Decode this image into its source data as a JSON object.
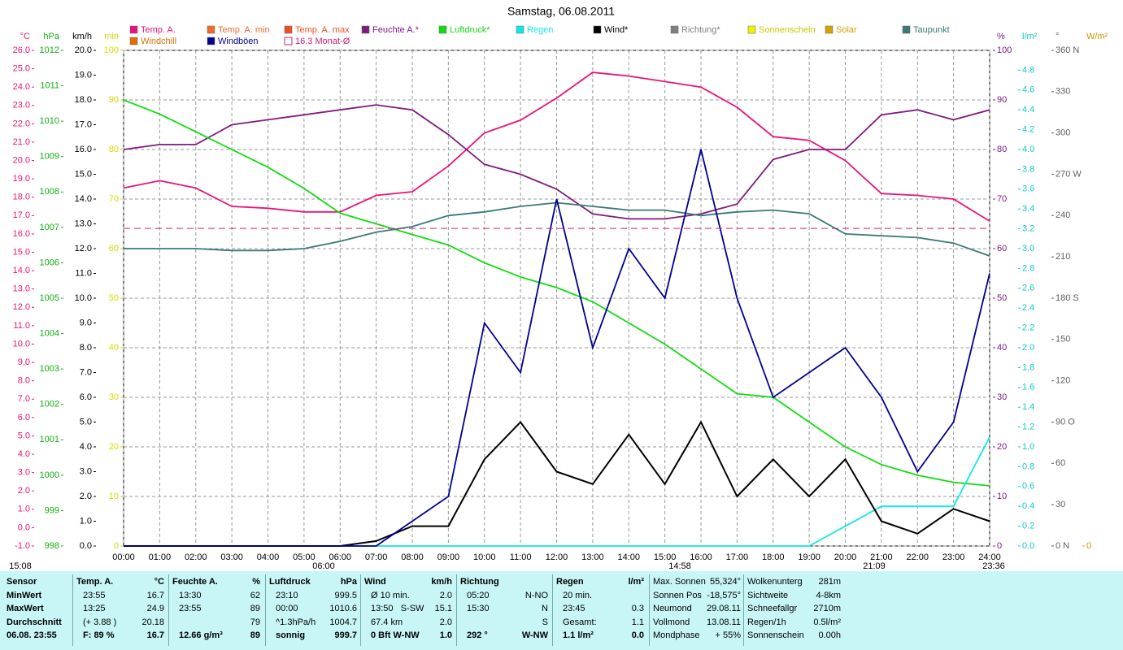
{
  "chart_data": {
    "type": "line",
    "title": "Samstag, 06.08.2011",
    "categories": [
      "00:00",
      "01:00",
      "02:00",
      "03:00",
      "04:00",
      "05:00",
      "06:00",
      "07:00",
      "08:00",
      "09:00",
      "10:00",
      "11:00",
      "12:00",
      "13:00",
      "14:00",
      "15:00",
      "16:00",
      "17:00",
      "18:00",
      "19:00",
      "20:00",
      "21:00",
      "22:00",
      "23:00",
      "24:00"
    ],
    "grid": true,
    "axes": [
      {
        "label": "°C",
        "side": "left",
        "color": "#e8137a",
        "ylim": [
          -1,
          26
        ],
        "yticks": [
          {
            "value": -1,
            "label": "-1.0"
          },
          {
            "value": 0,
            "label": "0.0"
          },
          {
            "value": 1,
            "label": "1.0"
          },
          {
            "value": 2,
            "label": "2.0"
          },
          {
            "value": 3,
            "label": "3.0"
          },
          {
            "value": 4,
            "label": "4.0"
          },
          {
            "value": 5,
            "label": "5.0"
          },
          {
            "value": 6,
            "label": "6.0"
          },
          {
            "value": 7,
            "label": "7.0"
          },
          {
            "value": 8,
            "label": "8.0"
          },
          {
            "value": 9,
            "label": "9.0"
          },
          {
            "value": 10,
            "label": "10.0"
          },
          {
            "value": 11,
            "label": "11.0"
          },
          {
            "value": 12,
            "label": "12.0"
          },
          {
            "value": 13,
            "label": "13.0"
          },
          {
            "value": 14,
            "label": "14.0"
          },
          {
            "value": 15,
            "label": "15.0"
          },
          {
            "value": 16,
            "label": "16.0"
          },
          {
            "value": 17,
            "label": "17.0"
          },
          {
            "value": 18,
            "label": "18.0"
          },
          {
            "value": 19,
            "label": "19.0"
          },
          {
            "value": 20,
            "label": "20.0"
          },
          {
            "value": 21,
            "label": "21.0"
          },
          {
            "value": 22,
            "label": "22.0"
          },
          {
            "value": 23,
            "label": "23.0"
          },
          {
            "value": 24,
            "label": "24.0"
          },
          {
            "value": 25,
            "label": "25.0"
          },
          {
            "value": 26,
            "label": "26.0"
          }
        ]
      },
      {
        "label": "hPa",
        "side": "left",
        "color": "#10b010",
        "ylim": [
          998,
          1012
        ],
        "yticks": [
          998,
          999,
          1000,
          1001,
          1002,
          1003,
          1004,
          1005,
          1006,
          1007,
          1008,
          1009,
          1010,
          1011,
          1012
        ]
      },
      {
        "label": "km/h",
        "side": "left",
        "color": "#000000",
        "ylim": [
          0,
          20
        ],
        "yticks": [
          {
            "value": 0,
            "label": "0.0"
          },
          {
            "value": 1,
            "label": "1.0"
          },
          {
            "value": 2,
            "label": "2.0"
          },
          {
            "value": 3,
            "label": "3.0"
          },
          {
            "value": 4,
            "label": "4.0"
          },
          {
            "value": 5,
            "label": "5.0"
          },
          {
            "value": 6,
            "label": "6.0"
          },
          {
            "value": 7,
            "label": "7.0"
          },
          {
            "value": 8,
            "label": "8.0"
          },
          {
            "value": 9,
            "label": "9.0"
          },
          {
            "value": 10,
            "label": "10.0"
          },
          {
            "value": 11,
            "label": "11.0"
          },
          {
            "value": 12,
            "label": "12.0"
          },
          {
            "value": 13,
            "label": "13.0"
          },
          {
            "value": 14,
            "label": "14.0"
          },
          {
            "value": 15,
            "label": "15.0"
          },
          {
            "value": 16,
            "label": "16.0"
          },
          {
            "value": 17,
            "label": "17.0"
          },
          {
            "value": 18,
            "label": "18.0"
          },
          {
            "value": 19,
            "label": "19.0"
          },
          {
            "value": 20,
            "label": "20.0"
          }
        ]
      },
      {
        "label": "min",
        "side": "left",
        "color": "#d8d800",
        "ylim": [
          0,
          100
        ],
        "yticks": [
          0,
          10,
          20,
          30,
          40,
          50,
          60,
          70,
          80,
          90,
          100
        ]
      },
      {
        "label": "%",
        "side": "right",
        "color": "#801a80",
        "ylim": [
          0,
          100
        ],
        "yticks": [
          0,
          10,
          20,
          30,
          40,
          50,
          60,
          70,
          80,
          90,
          100
        ],
        "grid": true
      },
      {
        "label": "l/m²",
        "side": "right",
        "color": "#10c8c8",
        "ylim": [
          0,
          5
        ],
        "yticks": [
          {
            "value": 0,
            "label": "0.0"
          },
          {
            "value": 0.2,
            "label": "0.2"
          },
          {
            "value": 0.4,
            "label": "0.4"
          },
          {
            "value": 0.6,
            "label": "0.6"
          },
          {
            "value": 0.8,
            "label": "0.8"
          },
          {
            "value": 1,
            "label": "1.0"
          },
          {
            "value": 1.2,
            "label": "1.2"
          },
          {
            "value": 1.4,
            "label": "1.4"
          },
          {
            "value": 1.6,
            "label": "1.6"
          },
          {
            "value": 1.8,
            "label": "1.8"
          },
          {
            "value": 2,
            "label": "2.0"
          },
          {
            "value": 2.2,
            "label": "2.2"
          },
          {
            "value": 2.4,
            "label": "2.4"
          },
          {
            "value": 2.6,
            "label": "2.6"
          },
          {
            "value": 2.8,
            "label": "2.8"
          },
          {
            "value": 3,
            "label": "3.0"
          },
          {
            "value": 3.2,
            "label": "3.2"
          },
          {
            "value": 3.4,
            "label": "3.4"
          },
          {
            "value": 3.6,
            "label": "3.6"
          },
          {
            "value": 3.8,
            "label": "3.8"
          },
          {
            "value": 4,
            "label": "4.0"
          },
          {
            "value": 4.2,
            "label": "4.2"
          },
          {
            "value": 4.4,
            "label": "4.4"
          },
          {
            "value": 4.6,
            "label": "4.6"
          },
          {
            "value": 4.8,
            "label": "4.8"
          }
        ]
      },
      {
        "label": "°",
        "side": "right",
        "color": "#606060",
        "ylim": [
          0,
          360
        ],
        "yticks": [
          {
            "value": 0,
            "label": "0 N"
          },
          30,
          60,
          {
            "value": 90,
            "label": "90 O"
          },
          120,
          150,
          {
            "value": 180,
            "label": "180 S"
          },
          210,
          240,
          {
            "value": 270,
            "label": "270 W"
          },
          300,
          330,
          {
            "value": 360,
            "label": "360 N"
          }
        ]
      },
      {
        "label": "W/m²",
        "side": "right",
        "color": "#c89600",
        "yticks": [
          0
        ]
      }
    ],
    "series": [
      {
        "name": "Temp. A.",
        "color": "#e8137a",
        "axis": 0,
        "values": [
          18.5,
          18.9,
          18.5,
          17.5,
          17.4,
          17.2,
          17.2,
          18.1,
          18.3,
          19.7,
          21.5,
          22.2,
          23.4,
          24.8,
          24.6,
          24.3,
          24.0,
          22.9,
          21.3,
          21.1,
          20.0,
          18.2,
          18.1,
          17.9,
          16.7
        ]
      },
      {
        "name": "Temp. A. min",
        "color": "#f06a30"
      },
      {
        "name": "Temp. A. max",
        "color": "#f05020"
      },
      {
        "name": "Feuchte A.*",
        "color": "#801a80",
        "axis": 4,
        "values": [
          80,
          81,
          81,
          85,
          86,
          87,
          88,
          89,
          88,
          83,
          77,
          75,
          72,
          67,
          66,
          66,
          67,
          69,
          78,
          80,
          80,
          87,
          88,
          86,
          88
        ]
      },
      {
        "name": "Luftdruck*",
        "color": "#10dd10",
        "axis": 1,
        "values": [
          1010.6,
          1010.2,
          1009.7,
          1009.2,
          1008.7,
          1008.1,
          1007.4,
          1007.1,
          1006.8,
          1006.5,
          1006.0,
          1005.6,
          1005.3,
          1004.9,
          1004.3,
          1003.7,
          1003.0,
          1002.3,
          1002.2,
          1001.5,
          1000.8,
          1000.3,
          1000.0,
          999.8,
          999.7
        ]
      },
      {
        "name": "Regen",
        "color": "#10e8e8",
        "axis": 5,
        "values": [
          0,
          0,
          0,
          0,
          0,
          0,
          0,
          0,
          0,
          0,
          0,
          0,
          0,
          0,
          0,
          0,
          0,
          0,
          0,
          0,
          0.2,
          0.4,
          0.4,
          0.4,
          1.1
        ]
      },
      {
        "name": "Wind*",
        "color": "#000000",
        "axis": 2,
        "values": [
          0,
          0,
          0,
          0,
          0,
          0,
          0,
          0.2,
          0.8,
          0.8,
          3.5,
          5.0,
          3.0,
          2.5,
          4.5,
          2.5,
          5.0,
          2.0,
          3.5,
          2.0,
          3.5,
          1.0,
          0.5,
          1.5,
          1.0
        ]
      },
      {
        "name": "Richtung*",
        "color": "#808080"
      },
      {
        "name": "Sonnenschein",
        "color": "#f0f000"
      },
      {
        "name": "Solar",
        "color": "#d8a000"
      },
      {
        "name": "Taupunkt",
        "color": "#3a7a78",
        "axis": 0,
        "values": [
          15.2,
          15.2,
          15.2,
          15.1,
          15.1,
          15.2,
          15.6,
          16.1,
          16.4,
          17.0,
          17.2,
          17.5,
          17.7,
          17.5,
          17.3,
          17.3,
          17.0,
          17.2,
          17.3,
          17.1,
          16.0,
          15.9,
          15.8,
          15.5,
          14.8
        ]
      },
      {
        "name": "Windchill",
        "color": "#e07000"
      },
      {
        "name": "Windböen",
        "color": "#000090",
        "axis": 2,
        "values": [
          0,
          0,
          0,
          0,
          0,
          0,
          0,
          0,
          1.0,
          2.0,
          9.0,
          7.0,
          14.0,
          8.0,
          12.0,
          10.0,
          16.0,
          10.0,
          6.0,
          7.0,
          8.0,
          6.0,
          3.0,
          5.0,
          11.0
        ]
      },
      {
        "name": "16.3 Monat-Ø",
        "color": "#d0207a",
        "axis": 0,
        "level": 16.3,
        "marker": "box"
      }
    ],
    "markers": [
      "15:08",
      "06:00",
      "14:58",
      "21:09",
      "23:36"
    ]
  },
  "stats": [
    {
      "header": [
        "Sensor"
      ],
      "rows": [
        {
          "l": "MinWert"
        },
        {
          "l": "MaxWert"
        },
        {
          "l": "Durchschnitt"
        },
        {
          "l": "06.08. 23:55"
        }
      ]
    },
    {
      "header": [
        "Temp. A.",
        "°C"
      ],
      "rows": [
        {
          "l": "23:55",
          "r": "16.7"
        },
        {
          "l": "13:25",
          "r": "24.9"
        },
        {
          "l": "(+ 3.88 )",
          "r": "20.18"
        },
        {
          "l": "F: 89 %",
          "r": "16.7"
        }
      ]
    },
    {
      "header": [
        "Feuchte A.",
        "%"
      ],
      "rows": [
        {
          "l": "13:30",
          "r": "62"
        },
        {
          "l": "23:55",
          "r": "89"
        },
        {
          "r": "79"
        },
        {
          "l": "12.66 g/m³",
          "r": "89"
        }
      ]
    },
    {
      "header": [
        "Luftdruck",
        "hPa"
      ],
      "rows": [
        {
          "l": "23:10",
          "r": "999.5"
        },
        {
          "l": "00:00",
          "r": "1010.6"
        },
        {
          "l": "^1.3hPa/h",
          "r": "1004.7"
        },
        {
          "l": "sonnig",
          "r": "999.7"
        }
      ]
    },
    {
      "header": [
        "Wind",
        "km/h"
      ],
      "rows": [
        {
          "l": "Ø 10 min.",
          "r": "2.0"
        },
        {
          "l": "13:50   S-SW",
          "r": "15.1"
        },
        {
          "l": "67.4 km",
          "r": "2.0"
        },
        {
          "l": "0 Bft W-NW",
          "r": "1.0"
        }
      ]
    },
    {
      "header": [
        "Richtung"
      ],
      "rows": [
        {
          "l": "05:20",
          "r": "N-NO"
        },
        {
          "l": "15:30",
          "r": "N"
        },
        {
          "r": "S"
        },
        {
          "l": "292 °",
          "r": "W-NW"
        }
      ]
    },
    {
      "header": [
        "Regen",
        "l/m²"
      ],
      "rows": [
        {
          "l": "20 min."
        },
        {
          "l": "23:45",
          "r": "0.3"
        },
        {
          "l": "Gesamt:",
          "r": "1.1"
        },
        {
          "l": "1.1 l/m²",
          "r": "0.0"
        }
      ]
    },
    {
      "rows": [
        {
          "l": "Max. Sonnen",
          "r": "55,324°"
        },
        {
          "l": "Sonnen Pos",
          "r": "-18,575°"
        },
        {
          "l": "Neumond",
          "r": "29.08.11"
        },
        {
          "l": "Vollmond",
          "r": "13.08.11"
        },
        {
          "l": "Mondphase",
          "r": "+ 55%"
        }
      ]
    },
    {
      "rows": [
        {
          "l": "Wolkenunterg",
          "r": "281m"
        },
        {
          "l": "Sichtweite",
          "r": "4-8km"
        },
        {
          "l": "Schneefallgr",
          "r": "2710m"
        },
        {
          "l": "Regen/1h",
          "r": "0.5l/m²"
        },
        {
          "l": "Sonnenschein",
          "r": "0.00h"
        }
      ]
    }
  ]
}
